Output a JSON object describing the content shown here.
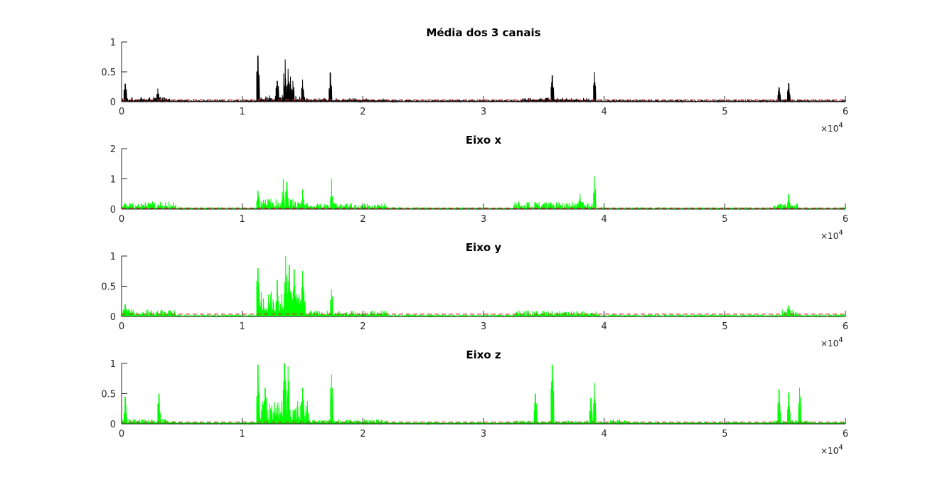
{
  "figure": {
    "background": "#ffffff",
    "axis_color": "#262626",
    "threshold_color": "#d62728",
    "mean_line_color": "#000000",
    "axis_line_color": "#00ff00"
  },
  "chart_data": [
    {
      "type": "line",
      "title": "Média dos 3 canais",
      "xlabel": "",
      "ylabel": "",
      "xlim": [
        0,
        60000
      ],
      "ylim": [
        0,
        1
      ],
      "xticks": [
        0,
        10000,
        20000,
        30000,
        40000,
        50000,
        60000
      ],
      "xtick_labels": [
        "0",
        "1",
        "2",
        "3",
        "4",
        "5",
        "6"
      ],
      "x_exponent_label": "×10",
      "x_exponent_power": "4",
      "yticks": [
        0,
        0.5,
        1
      ],
      "ytick_labels": [
        "0",
        "0.5",
        "1"
      ],
      "grid": false,
      "series_color": "#000000",
      "baseline_noise": 0.03,
      "threshold": 0.03,
      "activity_regions": [
        {
          "x": [
            0,
            4000
          ],
          "level": 0.08
        },
        {
          "x": [
            11200,
            15200
          ],
          "level": 0.12
        },
        {
          "x": [
            15200,
            22000
          ],
          "level": 0.06
        },
        {
          "x": [
            33200,
            38800
          ],
          "level": 0.07
        },
        {
          "x": [
            40800,
            42000
          ],
          "level": 0.04
        },
        {
          "x": [
            54500,
            55500
          ],
          "level": 0.05
        }
      ],
      "peaks": [
        {
          "x": 11300,
          "y": 0.77
        },
        {
          "x": 12900,
          "y": 0.35
        },
        {
          "x": 13550,
          "y": 0.71
        },
        {
          "x": 13800,
          "y": 0.55
        },
        {
          "x": 14000,
          "y": 0.42
        },
        {
          "x": 14200,
          "y": 0.35
        },
        {
          "x": 15000,
          "y": 0.37
        },
        {
          "x": 17300,
          "y": 0.49
        },
        {
          "x": 35700,
          "y": 0.44
        },
        {
          "x": 39200,
          "y": 0.5
        },
        {
          "x": 54500,
          "y": 0.24
        },
        {
          "x": 55300,
          "y": 0.31
        },
        {
          "x": 300,
          "y": 0.3
        },
        {
          "x": 3000,
          "y": 0.22
        }
      ]
    },
    {
      "type": "line",
      "title": "Eixo x",
      "xlabel": "",
      "ylabel": "",
      "xlim": [
        0,
        60000
      ],
      "ylim": [
        0,
        2
      ],
      "xticks": [
        0,
        10000,
        20000,
        30000,
        40000,
        50000,
        60000
      ],
      "xtick_labels": [
        "0",
        "1",
        "2",
        "3",
        "4",
        "5",
        "6"
      ],
      "x_exponent_label": "×10",
      "x_exponent_power": "4",
      "yticks": [
        0,
        1,
        2
      ],
      "ytick_labels": [
        "0",
        "1",
        "2"
      ],
      "grid": false,
      "series_color": "#00ff00",
      "baseline_noise": 0.06,
      "threshold": 0.03,
      "activity_regions": [
        {
          "x": [
            0,
            4500
          ],
          "level": 0.25
        },
        {
          "x": [
            11200,
            15500
          ],
          "level": 0.35
        },
        {
          "x": [
            15500,
            22000
          ],
          "level": 0.2
        },
        {
          "x": [
            32500,
            39000
          ],
          "level": 0.25
        },
        {
          "x": [
            54000,
            56000
          ],
          "level": 0.2
        }
      ],
      "peaks": [
        {
          "x": 11300,
          "y": 0.6
        },
        {
          "x": 13400,
          "y": 1.0
        },
        {
          "x": 13700,
          "y": 0.9
        },
        {
          "x": 15000,
          "y": 0.65
        },
        {
          "x": 17400,
          "y": 1.0
        },
        {
          "x": 38000,
          "y": 0.5
        },
        {
          "x": 39200,
          "y": 1.1
        },
        {
          "x": 55300,
          "y": 0.5
        }
      ]
    },
    {
      "type": "line",
      "title": "Eixo y",
      "xlabel": "",
      "ylabel": "",
      "xlim": [
        0,
        60000
      ],
      "ylim": [
        0,
        1
      ],
      "xticks": [
        0,
        10000,
        20000,
        30000,
        40000,
        50000,
        60000
      ],
      "xtick_labels": [
        "0",
        "1",
        "2",
        "3",
        "4",
        "5",
        "6"
      ],
      "x_exponent_label": "×10",
      "x_exponent_power": "4",
      "yticks": [
        0,
        0.5,
        1
      ],
      "ytick_labels": [
        "0",
        "0.5",
        "1"
      ],
      "grid": false,
      "series_color": "#00ff00",
      "baseline_noise": 0.03,
      "threshold": 0.04,
      "activity_regions": [
        {
          "x": [
            0,
            4500
          ],
          "level": 0.12
        },
        {
          "x": [
            11200,
            15200
          ],
          "level": 0.45
        },
        {
          "x": [
            15200,
            22000
          ],
          "level": 0.1
        },
        {
          "x": [
            32500,
            39500
          ],
          "level": 0.1
        },
        {
          "x": [
            54500,
            56000
          ],
          "level": 0.12
        }
      ],
      "peaks": [
        {
          "x": 11300,
          "y": 0.8
        },
        {
          "x": 12900,
          "y": 0.6
        },
        {
          "x": 13600,
          "y": 1.0
        },
        {
          "x": 13900,
          "y": 0.85
        },
        {
          "x": 14300,
          "y": 0.78
        },
        {
          "x": 15000,
          "y": 0.75
        },
        {
          "x": 17400,
          "y": 0.45
        },
        {
          "x": 300,
          "y": 0.2
        },
        {
          "x": 55300,
          "y": 0.18
        }
      ]
    },
    {
      "type": "line",
      "title": "Eixo z",
      "xlabel": "",
      "ylabel": "",
      "xlim": [
        0,
        60000
      ],
      "ylim": [
        0,
        1
      ],
      "xticks": [
        0,
        10000,
        20000,
        30000,
        40000,
        50000,
        60000
      ],
      "xtick_labels": [
        "0",
        "1",
        "2",
        "3",
        "4",
        "5",
        "6"
      ],
      "x_exponent_label": "×10",
      "x_exponent_power": "4",
      "yticks": [
        0,
        0.5,
        1
      ],
      "ytick_labels": [
        "0",
        "0.5",
        "1"
      ],
      "grid": false,
      "series_color": "#00ff00",
      "baseline_noise": 0.03,
      "threshold": 0.03,
      "activity_regions": [
        {
          "x": [
            0,
            4500
          ],
          "level": 0.08
        },
        {
          "x": [
            11200,
            15500
          ],
          "level": 0.4
        },
        {
          "x": [
            15500,
            22000
          ],
          "level": 0.08
        },
        {
          "x": [
            32500,
            39500
          ],
          "level": 0.06
        },
        {
          "x": [
            40500,
            42000
          ],
          "level": 0.08
        },
        {
          "x": [
            54000,
            57000
          ],
          "level": 0.06
        }
      ],
      "peaks": [
        {
          "x": 11300,
          "y": 0.98
        },
        {
          "x": 11900,
          "y": 0.6
        },
        {
          "x": 13500,
          "y": 1.0
        },
        {
          "x": 13800,
          "y": 0.95
        },
        {
          "x": 15000,
          "y": 0.6
        },
        {
          "x": 17400,
          "y": 0.82
        },
        {
          "x": 3100,
          "y": 0.5
        },
        {
          "x": 300,
          "y": 0.45
        },
        {
          "x": 34300,
          "y": 0.5
        },
        {
          "x": 35700,
          "y": 0.98
        },
        {
          "x": 38900,
          "y": 0.43
        },
        {
          "x": 39200,
          "y": 0.68
        },
        {
          "x": 54500,
          "y": 0.57
        },
        {
          "x": 55300,
          "y": 0.52
        },
        {
          "x": 56200,
          "y": 0.6
        }
      ]
    }
  ]
}
